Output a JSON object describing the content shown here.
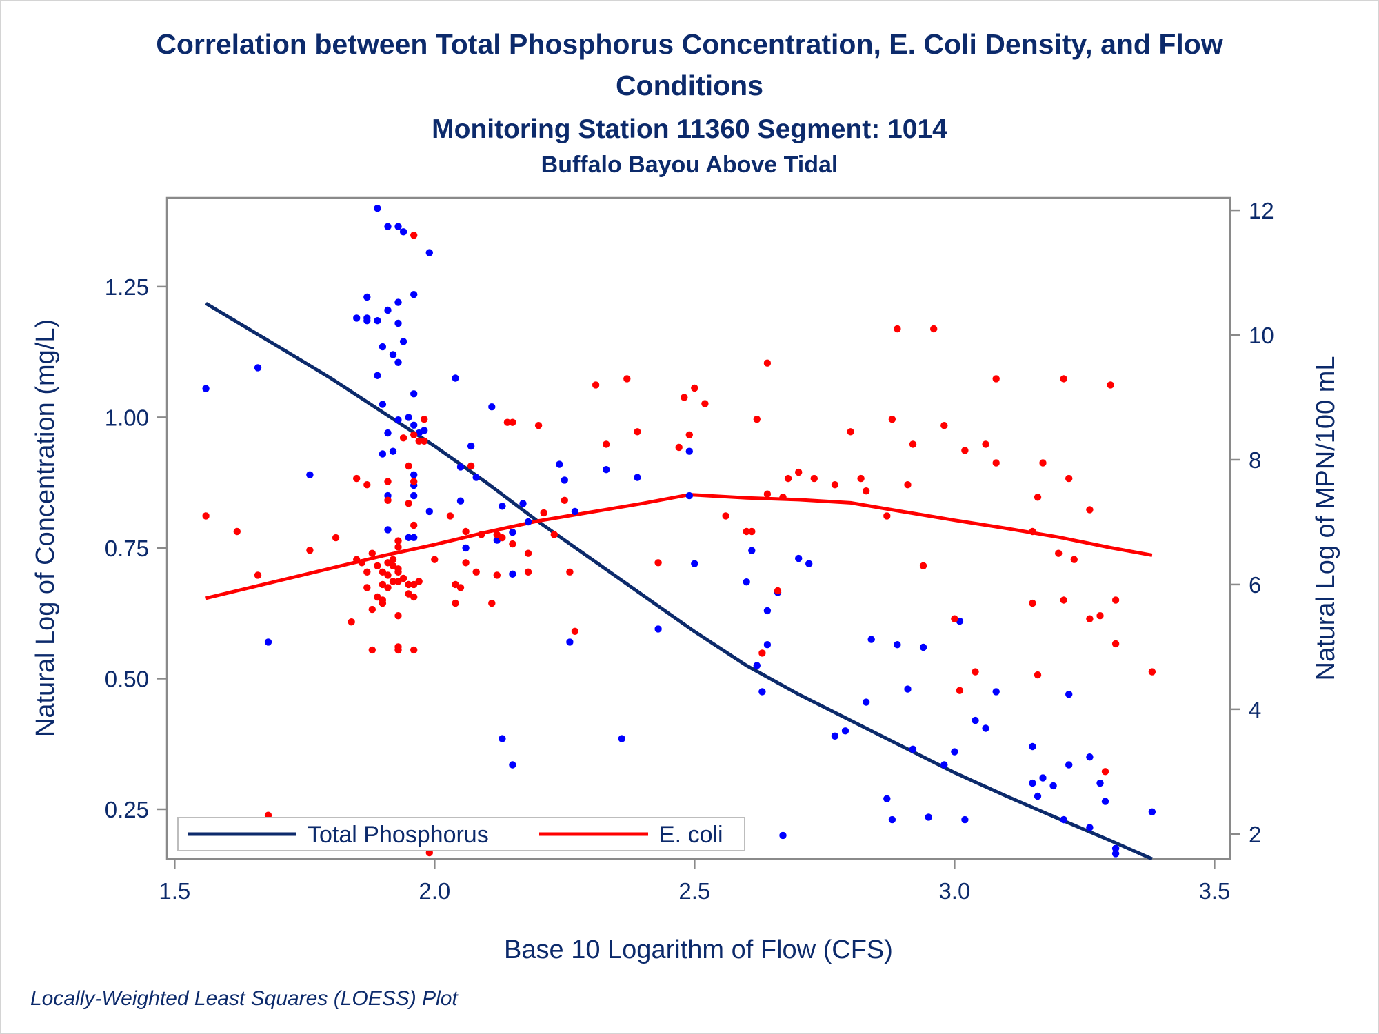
{
  "chart_data": {
    "type": "scatter",
    "title": "Correlation between Total Phosphorus Concentration, E. Coli Density, and Flow",
    "title_line2": "Conditions",
    "subtitle": "Monitoring Station 11360 Segment: 1014",
    "subtitle2": "Buffalo Bayou Above Tidal",
    "xlabel": "Base 10 Logarithm of Flow (CFS)",
    "ylabel": "Natural Log of Concentration (mg/L)",
    "y2label": "Natural Log of MPN/100 mL",
    "footnote": "Locally-Weighted Least Squares (LOESS) Plot",
    "xlim": [
      1.485,
      3.53
    ],
    "ylim": [
      0.155,
      1.42
    ],
    "y2lim": [
      1.6,
      12.2
    ],
    "xticks": [
      1.5,
      2.0,
      2.5,
      3.0,
      3.5
    ],
    "xtick_labels": [
      "1.5",
      "2.0",
      "2.5",
      "3.0",
      "3.5"
    ],
    "yticks": [
      0.25,
      0.5,
      0.75,
      1.0,
      1.25
    ],
    "ytick_labels": [
      "0.25",
      "0.50",
      "0.75",
      "1.00",
      "1.25"
    ],
    "y2ticks": [
      2,
      4,
      6,
      8,
      10,
      12
    ],
    "y2tick_labels": [
      "2",
      "4",
      "6",
      "8",
      "10",
      "12"
    ],
    "grid": false,
    "legend_position": "bottom-left-inside",
    "colors": {
      "phosphorus": "#0000ff",
      "ecoli": "#ff0000",
      "phosphorus_line": "#0c2a6b",
      "ecoli_line": "#ff0000",
      "text": "#0c2a6b",
      "axis": "#8a8a8a"
    },
    "series": [
      {
        "name": "Total Phosphorus",
        "axis": "left",
        "points": [
          [
            1.56,
            1.055
          ],
          [
            1.66,
            1.095
          ],
          [
            1.68,
            0.57
          ],
          [
            1.76,
            0.89
          ],
          [
            1.89,
            1.4
          ],
          [
            1.85,
            1.19
          ],
          [
            1.87,
            1.19
          ],
          [
            1.87,
            1.185
          ],
          [
            1.89,
            1.185
          ],
          [
            1.87,
            1.23
          ],
          [
            1.91,
            1.365
          ],
          [
            1.93,
            1.365
          ],
          [
            1.94,
            1.355
          ],
          [
            1.96,
            1.235
          ],
          [
            1.93,
            1.22
          ],
          [
            1.91,
            1.205
          ],
          [
            1.93,
            1.18
          ],
          [
            1.94,
            1.145
          ],
          [
            1.9,
            1.135
          ],
          [
            1.92,
            1.12
          ],
          [
            1.93,
            1.105
          ],
          [
            1.89,
            1.08
          ],
          [
            1.96,
            1.045
          ],
          [
            1.9,
            1.025
          ],
          [
            1.93,
            0.995
          ],
          [
            1.95,
            1.0
          ],
          [
            1.96,
            0.985
          ],
          [
            1.98,
            0.975
          ],
          [
            1.91,
            0.97
          ],
          [
            1.97,
            0.97
          ],
          [
            1.92,
            0.935
          ],
          [
            1.9,
            0.93
          ],
          [
            1.96,
            0.89
          ],
          [
            1.96,
            0.87
          ],
          [
            1.91,
            0.85
          ],
          [
            1.96,
            0.85
          ],
          [
            1.91,
            0.785
          ],
          [
            1.95,
            0.77
          ],
          [
            1.96,
            0.77
          ],
          [
            1.99,
            0.82
          ],
          [
            1.99,
            1.315
          ],
          [
            2.04,
            1.075
          ],
          [
            2.05,
            0.905
          ],
          [
            2.05,
            0.84
          ],
          [
            2.07,
            0.945
          ],
          [
            2.08,
            0.885
          ],
          [
            2.11,
            1.02
          ],
          [
            2.13,
            0.83
          ],
          [
            2.15,
            0.78
          ],
          [
            2.17,
            0.835
          ],
          [
            2.18,
            0.8
          ],
          [
            2.12,
            0.765
          ],
          [
            2.06,
            0.75
          ],
          [
            2.15,
            0.7
          ],
          [
            2.24,
            0.91
          ],
          [
            2.25,
            0.88
          ],
          [
            2.27,
            0.82
          ],
          [
            2.33,
            0.9
          ],
          [
            2.39,
            0.885
          ],
          [
            2.26,
            0.57
          ],
          [
            2.36,
            0.385
          ],
          [
            2.43,
            0.595
          ],
          [
            2.13,
            0.385
          ],
          [
            2.15,
            0.335
          ],
          [
            2.49,
            0.935
          ],
          [
            2.49,
            0.85
          ],
          [
            2.5,
            0.72
          ],
          [
            2.6,
            0.685
          ],
          [
            2.61,
            0.745
          ],
          [
            2.62,
            0.525
          ],
          [
            2.63,
            0.475
          ],
          [
            2.64,
            0.63
          ],
          [
            2.64,
            0.565
          ],
          [
            2.66,
            0.665
          ],
          [
            2.67,
            0.2
          ],
          [
            2.7,
            0.73
          ],
          [
            2.72,
            0.72
          ],
          [
            2.77,
            0.39
          ],
          [
            2.79,
            0.4
          ],
          [
            2.83,
            0.455
          ],
          [
            2.84,
            0.575
          ],
          [
            2.87,
            0.27
          ],
          [
            2.88,
            0.23
          ],
          [
            2.89,
            0.565
          ],
          [
            2.91,
            0.48
          ],
          [
            2.92,
            0.365
          ],
          [
            2.94,
            0.56
          ],
          [
            2.95,
            0.235
          ],
          [
            2.98,
            0.335
          ],
          [
            3.0,
            0.36
          ],
          [
            3.01,
            0.61
          ],
          [
            3.02,
            0.23
          ],
          [
            3.04,
            0.42
          ],
          [
            3.06,
            0.405
          ],
          [
            3.08,
            0.475
          ],
          [
            3.15,
            0.37
          ],
          [
            3.15,
            0.3
          ],
          [
            3.16,
            0.275
          ],
          [
            3.17,
            0.31
          ],
          [
            3.19,
            0.295
          ],
          [
            3.21,
            0.23
          ],
          [
            3.21,
            0.23
          ],
          [
            3.22,
            0.335
          ],
          [
            3.22,
            0.47
          ],
          [
            3.26,
            0.215
          ],
          [
            3.26,
            0.35
          ],
          [
            3.28,
            0.3
          ],
          [
            3.29,
            0.265
          ],
          [
            3.31,
            0.165
          ],
          [
            3.31,
            0.175
          ],
          [
            3.38,
            0.245
          ]
        ]
      },
      {
        "name": "E. coli",
        "axis": "right",
        "points": [
          [
            1.56,
            7.1
          ],
          [
            1.62,
            6.85
          ],
          [
            1.66,
            6.15
          ],
          [
            1.68,
            2.3
          ],
          [
            1.76,
            6.55
          ],
          [
            1.81,
            6.75
          ],
          [
            1.84,
            5.4
          ],
          [
            1.85,
            6.4
          ],
          [
            1.86,
            6.35
          ],
          [
            1.85,
            7.7
          ],
          [
            1.87,
            7.6
          ],
          [
            1.87,
            5.95
          ],
          [
            1.87,
            6.2
          ],
          [
            1.88,
            6.5
          ],
          [
            1.88,
            5.6
          ],
          [
            1.88,
            4.95
          ],
          [
            1.89,
            6.3
          ],
          [
            1.89,
            5.8
          ],
          [
            1.9,
            6.0
          ],
          [
            1.9,
            5.75
          ],
          [
            1.9,
            6.2
          ],
          [
            1.9,
            5.7
          ],
          [
            1.91,
            6.15
          ],
          [
            1.91,
            6.35
          ],
          [
            1.91,
            7.65
          ],
          [
            1.91,
            7.35
          ],
          [
            1.91,
            5.95
          ],
          [
            1.92,
            6.4
          ],
          [
            1.92,
            6.05
          ],
          [
            1.92,
            6.3
          ],
          [
            1.93,
            6.25
          ],
          [
            1.93,
            6.05
          ],
          [
            1.93,
            5.5
          ],
          [
            1.93,
            6.2
          ],
          [
            1.93,
            6.6
          ],
          [
            1.93,
            5.0
          ],
          [
            1.93,
            4.95
          ],
          [
            1.93,
            6.7
          ],
          [
            1.94,
            8.35
          ],
          [
            1.94,
            6.1
          ],
          [
            1.95,
            7.3
          ],
          [
            1.95,
            7.9
          ],
          [
            1.95,
            5.85
          ],
          [
            1.95,
            6.0
          ],
          [
            1.96,
            8.4
          ],
          [
            1.96,
            6.95
          ],
          [
            1.96,
            6.0
          ],
          [
            1.96,
            4.95
          ],
          [
            1.96,
            5.8
          ],
          [
            1.96,
            7.65
          ],
          [
            1.96,
            11.6
          ],
          [
            1.97,
            8.3
          ],
          [
            1.97,
            6.05
          ],
          [
            1.98,
            8.3
          ],
          [
            1.98,
            8.65
          ],
          [
            1.99,
            1.7
          ],
          [
            2.0,
            6.4
          ],
          [
            2.03,
            7.1
          ],
          [
            2.04,
            6.0
          ],
          [
            2.04,
            5.7
          ],
          [
            2.05,
            5.95
          ],
          [
            2.06,
            6.35
          ],
          [
            2.06,
            6.85
          ],
          [
            2.07,
            7.9
          ],
          [
            2.08,
            6.2
          ],
          [
            2.09,
            6.8
          ],
          [
            2.11,
            5.7
          ],
          [
            2.12,
            6.8
          ],
          [
            2.12,
            6.15
          ],
          [
            2.13,
            6.75
          ],
          [
            2.14,
            8.6
          ],
          [
            2.15,
            8.6
          ],
          [
            2.15,
            6.65
          ],
          [
            2.18,
            6.5
          ],
          [
            2.18,
            6.2
          ],
          [
            2.2,
            8.55
          ],
          [
            2.21,
            7.15
          ],
          [
            2.23,
            6.8
          ],
          [
            2.25,
            7.35
          ],
          [
            2.26,
            6.2
          ],
          [
            2.27,
            5.25
          ],
          [
            2.31,
            9.2
          ],
          [
            2.33,
            8.25
          ],
          [
            2.37,
            9.3
          ],
          [
            2.39,
            8.45
          ],
          [
            2.43,
            6.35
          ],
          [
            2.47,
            8.2
          ],
          [
            2.48,
            9.0
          ],
          [
            2.49,
            8.4
          ],
          [
            2.5,
            9.15
          ],
          [
            2.52,
            8.9
          ],
          [
            2.56,
            7.1
          ],
          [
            2.6,
            6.85
          ],
          [
            2.61,
            6.85
          ],
          [
            2.62,
            8.65
          ],
          [
            2.63,
            4.9
          ],
          [
            2.64,
            9.55
          ],
          [
            2.64,
            7.45
          ],
          [
            2.66,
            5.9
          ],
          [
            2.67,
            7.4
          ],
          [
            2.68,
            7.7
          ],
          [
            2.7,
            7.8
          ],
          [
            2.73,
            7.7
          ],
          [
            2.77,
            7.6
          ],
          [
            2.8,
            8.45
          ],
          [
            2.82,
            7.7
          ],
          [
            2.83,
            7.5
          ],
          [
            2.87,
            7.1
          ],
          [
            2.88,
            8.65
          ],
          [
            2.89,
            10.1
          ],
          [
            2.91,
            7.6
          ],
          [
            2.92,
            8.25
          ],
          [
            2.94,
            6.3
          ],
          [
            2.96,
            10.1
          ],
          [
            2.98,
            8.55
          ],
          [
            3.0,
            5.45
          ],
          [
            3.01,
            4.3
          ],
          [
            3.02,
            8.15
          ],
          [
            3.04,
            4.6
          ],
          [
            3.06,
            8.25
          ],
          [
            3.08,
            7.95
          ],
          [
            3.08,
            9.3
          ],
          [
            3.15,
            6.85
          ],
          [
            3.15,
            5.7
          ],
          [
            3.16,
            4.55
          ],
          [
            3.16,
            7.4
          ],
          [
            3.17,
            7.95
          ],
          [
            3.2,
            6.5
          ],
          [
            3.21,
            9.3
          ],
          [
            3.21,
            5.75
          ],
          [
            3.22,
            7.7
          ],
          [
            3.23,
            6.4
          ],
          [
            3.26,
            5.45
          ],
          [
            3.26,
            7.2
          ],
          [
            3.28,
            5.5
          ],
          [
            3.29,
            3.0
          ],
          [
            3.3,
            9.2
          ],
          [
            3.31,
            5.75
          ],
          [
            3.31,
            5.05
          ],
          [
            3.38,
            4.6
          ]
        ]
      }
    ],
    "fits": [
      {
        "name": "Total Phosphorus",
        "axis": "left",
        "x": [
          1.56,
          1.7,
          1.8,
          1.9,
          2.0,
          2.1,
          2.2,
          2.3,
          2.4,
          2.5,
          2.6,
          2.7,
          2.8,
          2.9,
          3.0,
          3.1,
          3.2,
          3.3,
          3.38
        ],
        "y": [
          1.218,
          1.135,
          1.075,
          1.01,
          0.945,
          0.875,
          0.8,
          0.73,
          0.66,
          0.59,
          0.525,
          0.47,
          0.42,
          0.37,
          0.32,
          0.275,
          0.232,
          0.19,
          0.155
        ]
      },
      {
        "name": "E. coli",
        "axis": "right",
        "x": [
          1.56,
          1.7,
          1.8,
          1.9,
          2.0,
          2.1,
          2.2,
          2.3,
          2.4,
          2.49,
          2.6,
          2.7,
          2.8,
          2.9,
          3.0,
          3.1,
          3.2,
          3.3,
          3.38
        ],
        "y": [
          5.78,
          6.06,
          6.26,
          6.46,
          6.64,
          6.84,
          7.02,
          7.16,
          7.3,
          7.44,
          7.39,
          7.36,
          7.31,
          7.17,
          7.03,
          6.9,
          6.76,
          6.59,
          6.47
        ]
      }
    ]
  }
}
